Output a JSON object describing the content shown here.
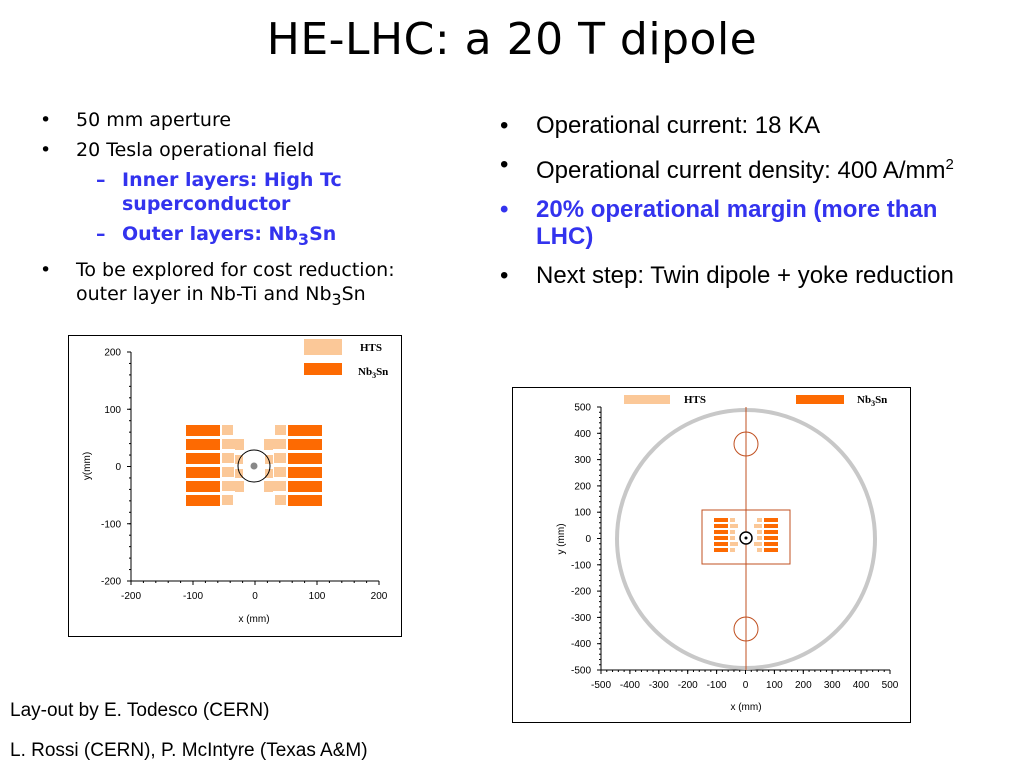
{
  "slide": {
    "title": "HE-LHC: a 20 T dipole",
    "bullet_symbol": "•",
    "dash_symbol": "–",
    "left_bullets": {
      "aperture": "50 mm aperture",
      "field": "20 Tesla operational field",
      "inner": "Inner layers: High Tc superconductor",
      "outer_prefix": "Outer layers: Nb",
      "outer_sub": "3",
      "outer_suffix": "Sn",
      "explore_prefix": "To be explored for cost reduction: outer layer in Nb-Ti and Nb",
      "explore_sub": "3",
      "explore_suffix": "Sn"
    },
    "right_bullets": {
      "current": "Operational current: 18 KA",
      "density_prefix": "Operational current density: 400 A/mm",
      "density_sup": "2",
      "margin": "20% operational margin (more than LHC)",
      "next": "Next step: Twin dipole + yoke reduction"
    },
    "credits": {
      "layout": "Lay-out by E. Todesco (CERN)",
      "authors": "L. Rossi (CERN), P. McIntyre (Texas A&M)"
    }
  },
  "colors": {
    "hts": "#fbc898",
    "nb3sn": "#fd6a02",
    "accent_text": "#3333ee",
    "cryostat": "#c8c8c8"
  },
  "chart_data": [
    {
      "type": "diagram",
      "title": "",
      "xlabel": "x (mm)",
      "ylabel": "y(mm)",
      "xlim": [
        -200,
        200
      ],
      "ylim": [
        -200,
        200
      ],
      "x_ticks": [
        "-200",
        "-100",
        "0",
        "100",
        "200"
      ],
      "y_ticks": [
        "200",
        "100",
        "0",
        "-100",
        "-200"
      ],
      "legend": [
        {
          "name": "HTS",
          "color": "#fbc898"
        },
        {
          "name_prefix": "Nb",
          "name_sub": "3",
          "name_suffix": "Sn",
          "color": "#fd6a02"
        }
      ]
    },
    {
      "type": "diagram",
      "title": "",
      "xlabel": "x (mm)",
      "ylabel": "y (mm)",
      "xlim": [
        -500,
        500
      ],
      "ylim": [
        -500,
        500
      ],
      "x_ticks": [
        "-500",
        "-400",
        "-300",
        "-200",
        "-100",
        "0",
        "100",
        "200",
        "300",
        "400",
        "500"
      ],
      "y_ticks": [
        "500",
        "400",
        "300",
        "200",
        "100",
        "0",
        "-100",
        "-200",
        "-300",
        "-400",
        "-500"
      ],
      "legend": [
        {
          "name": "HTS",
          "color": "#fbc898"
        },
        {
          "name_prefix": "Nb",
          "name_sub": "3",
          "name_suffix": "Sn",
          "color": "#fd6a02"
        }
      ]
    }
  ]
}
